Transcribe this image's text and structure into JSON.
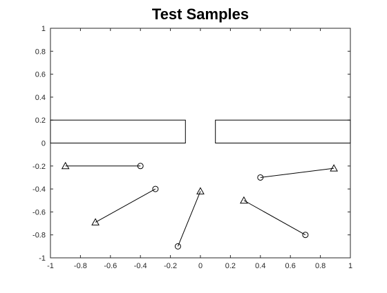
{
  "chart_data": {
    "type": "scatter",
    "title": "Test Samples",
    "xlabel": "",
    "ylabel": "",
    "xlim": [
      -1,
      1
    ],
    "ylim": [
      -1,
      1
    ],
    "xticks": [
      "-1",
      "-0.8",
      "-0.6",
      "-0.4",
      "-0.2",
      "0",
      "0.2",
      "0.4",
      "0.6",
      "0.8",
      "1"
    ],
    "yticks": [
      "-1",
      "-0.8",
      "-0.6",
      "-0.4",
      "-0.2",
      "0",
      "0.2",
      "0.4",
      "0.6",
      "0.8",
      "1"
    ],
    "grid": false,
    "obstacles": [
      {
        "x0": -1,
        "x1": -0.1,
        "y0": 0,
        "y1": 0.2
      },
      {
        "x0": 0.1,
        "x1": 1,
        "y0": 0,
        "y1": 0.2
      }
    ],
    "samples": [
      {
        "start": [
          -0.4,
          -0.2
        ],
        "end": [
          -0.9,
          -0.2
        ]
      },
      {
        "start": [
          -0.3,
          -0.4
        ],
        "end": [
          -0.7,
          -0.69
        ]
      },
      {
        "start": [
          -0.15,
          -0.9
        ],
        "end": [
          0.0,
          -0.42
        ]
      },
      {
        "start": [
          0.4,
          -0.3
        ],
        "end": [
          0.89,
          -0.22
        ]
      },
      {
        "start": [
          0.7,
          -0.8
        ],
        "end": [
          0.29,
          -0.5
        ]
      }
    ],
    "markers": {
      "start": "circle",
      "end": "triangle"
    },
    "colors": {
      "line": "#000000",
      "axes": "#262626",
      "background": "#ffffff"
    }
  }
}
